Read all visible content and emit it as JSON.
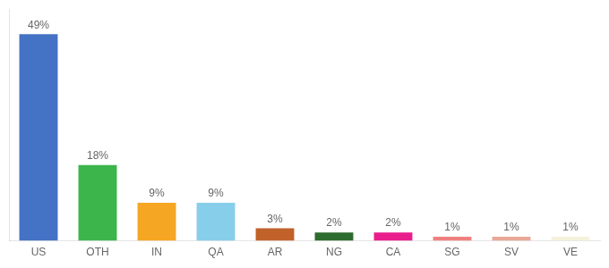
{
  "chart_data": {
    "type": "bar",
    "categories": [
      "US",
      "OTH",
      "IN",
      "QA",
      "AR",
      "NG",
      "CA",
      "SG",
      "SV",
      "VE"
    ],
    "values": [
      49,
      18,
      9,
      9,
      3,
      2,
      2,
      1,
      1,
      1
    ],
    "value_labels": [
      "49%",
      "18%",
      "9%",
      "9%",
      "3%",
      "2%",
      "2%",
      "1%",
      "1%",
      "1%"
    ],
    "colors": [
      "#4472c4",
      "#3cb54a",
      "#f5a623",
      "#87ceeb",
      "#c0622a",
      "#2e6b2e",
      "#e91e8c",
      "#f08080",
      "#e8a898",
      "#f5f2dc"
    ],
    "ylim": [
      0,
      55
    ],
    "grid": false,
    "data_labels": true,
    "tick_labels": "x"
  }
}
